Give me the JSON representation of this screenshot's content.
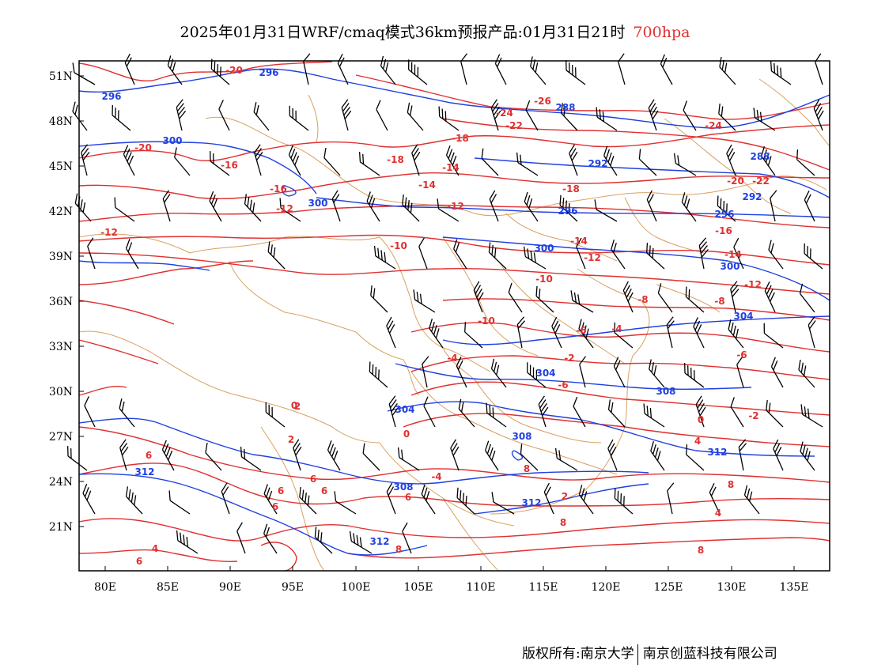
{
  "title": {
    "main": "2025年01月31日WRF/cmaq模式36km预报产品:01月31日21时",
    "level": "700hpa"
  },
  "colors": {
    "temperature_contour": "#e03030",
    "height_contour": "#2040e0",
    "boundary": "#d9a060",
    "wind_barb": "#000000"
  },
  "axes": {
    "lat_labels": [
      "51N",
      "48N",
      "45N",
      "42N",
      "39N",
      "36N",
      "33N",
      "30N",
      "27N",
      "24N",
      "21N"
    ],
    "lon_labels": [
      "80E",
      "85E",
      "90E",
      "95E",
      "100E",
      "105E",
      "110E",
      "115E",
      "120E",
      "125E",
      "130E",
      "135E"
    ]
  },
  "contour_labels": {
    "temperature": [
      "-20",
      "-26",
      "-24",
      "-22",
      "-20",
      "-24",
      "-18",
      "-18",
      "-16",
      "-14",
      "-16",
      "-14",
      "-12",
      "-12",
      "-18",
      "-20",
      "-22",
      "-12",
      "-10",
      "-14",
      "-12",
      "-16",
      "-14",
      "-10",
      "-12",
      "-8",
      "-8",
      "-10",
      "-6",
      "-4",
      "-6",
      "-4",
      "-2",
      "-6",
      "0",
      "-2",
      "0",
      "0",
      "6",
      "2",
      "4",
      "6",
      "6",
      "-4",
      "6",
      "6",
      "8",
      "2",
      "4",
      "8",
      "8",
      "6",
      "8",
      "4",
      "8",
      "6",
      "2",
      "-2"
    ],
    "height": [
      "296",
      "296",
      "300",
      "300",
      "288",
      "292",
      "288",
      "292",
      "296",
      "296",
      "300",
      "300",
      "304",
      "304",
      "308",
      "304",
      "308",
      "308",
      "312",
      "312",
      "312",
      "312"
    ]
  },
  "footer": {
    "left": "版权所有:南京大学",
    "right": "南京创蓝科技有限公司"
  }
}
